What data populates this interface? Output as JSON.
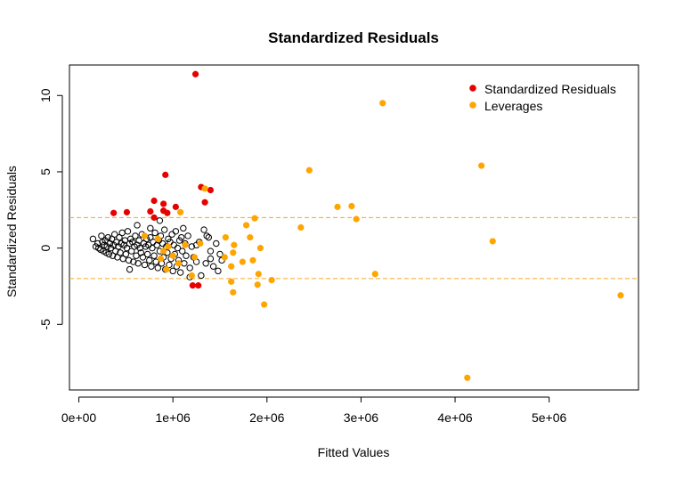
{
  "chart_data": {
    "type": "scatter",
    "title": "Standardized Residuals",
    "xlabel": "Fitted Values",
    "ylabel": "Standardized Residuals",
    "xlim": [
      -100000,
      5950000
    ],
    "ylim": [
      -9.3,
      12.0
    ],
    "x_ticks": [
      {
        "value": 0,
        "label": "0e+00"
      },
      {
        "value": 1000000,
        "label": "1e+06"
      },
      {
        "value": 2000000,
        "label": "2e+06"
      },
      {
        "value": 3000000,
        "label": "3e+06"
      },
      {
        "value": 4000000,
        "label": "4e+06"
      },
      {
        "value": 5000000,
        "label": "5e+06"
      }
    ],
    "y_ticks": [
      {
        "value": -5,
        "label": "-5"
      },
      {
        "value": 0,
        "label": "0"
      },
      {
        "value": 5,
        "label": "5"
      },
      {
        "value": 10,
        "label": "10"
      }
    ],
    "reference_lines": [
      {
        "axis": "y",
        "value": 2,
        "style": "dashed",
        "color": "#f5a623"
      },
      {
        "axis": "y",
        "value": -2,
        "style": "dashed",
        "color": "#f5a623"
      }
    ],
    "legend": {
      "position": "top-right",
      "entries": [
        {
          "label": "Standardized Residuals",
          "color": "#e60000"
        },
        {
          "label": "Leverages",
          "color": "#ffa500"
        }
      ]
    },
    "series": [
      {
        "marker": "open-circle",
        "color": "#000000",
        "points": [
          [
            150000,
            0.6
          ],
          [
            180000,
            0.1
          ],
          [
            200000,
            0.3
          ],
          [
            210000,
            0.0
          ],
          [
            230000,
            -0.1
          ],
          [
            240000,
            0.8
          ],
          [
            250000,
            0.4
          ],
          [
            260000,
            -0.2
          ],
          [
            270000,
            0.2
          ],
          [
            280000,
            0.5
          ],
          [
            290000,
            -0.3
          ],
          [
            300000,
            0.1
          ],
          [
            310000,
            0.7
          ],
          [
            320000,
            -0.4
          ],
          [
            330000,
            0.3
          ],
          [
            340000,
            0.0
          ],
          [
            350000,
            0.6
          ],
          [
            360000,
            -0.5
          ],
          [
            370000,
            0.2
          ],
          [
            380000,
            0.9
          ],
          [
            390000,
            -0.2
          ],
          [
            400000,
            0.4
          ],
          [
            410000,
            -0.6
          ],
          [
            420000,
            0.1
          ],
          [
            430000,
            0.7
          ],
          [
            440000,
            -0.3
          ],
          [
            450000,
            0.3
          ],
          [
            460000,
            1.0
          ],
          [
            470000,
            -0.7
          ],
          [
            480000,
            0.2
          ],
          [
            490000,
            0.5
          ],
          [
            500000,
            -0.4
          ],
          [
            510000,
            0.0
          ],
          [
            520000,
            1.1
          ],
          [
            530000,
            -0.8
          ],
          [
            540000,
            0.3
          ],
          [
            550000,
            0.6
          ],
          [
            560000,
            -0.2
          ],
          [
            570000,
            0.4
          ],
          [
            580000,
            -0.9
          ],
          [
            590000,
            0.1
          ],
          [
            600000,
            0.8
          ],
          [
            610000,
            -0.5
          ],
          [
            620000,
            0.2
          ],
          [
            630000,
            -1.0
          ],
          [
            640000,
            0.5
          ],
          [
            650000,
            0.0
          ],
          [
            660000,
            -0.3
          ],
          [
            670000,
            0.9
          ],
          [
            680000,
            -0.6
          ],
          [
            690000,
            0.3
          ],
          [
            700000,
            -1.1
          ],
          [
            710000,
            0.1
          ],
          [
            720000,
            0.6
          ],
          [
            730000,
            -0.4
          ],
          [
            740000,
            0.2
          ],
          [
            750000,
            -0.8
          ],
          [
            760000,
            0.7
          ],
          [
            770000,
            -1.2
          ],
          [
            780000,
            0.0
          ],
          [
            790000,
            0.4
          ],
          [
            800000,
            -0.5
          ],
          [
            810000,
            1.0
          ],
          [
            820000,
            -0.9
          ],
          [
            830000,
            0.2
          ],
          [
            840000,
            -1.3
          ],
          [
            850000,
            0.5
          ],
          [
            860000,
            -0.2
          ],
          [
            870000,
            0.8
          ],
          [
            880000,
            -1.0
          ],
          [
            890000,
            0.3
          ],
          [
            900000,
            -0.6
          ],
          [
            910000,
            1.2
          ],
          [
            920000,
            -1.4
          ],
          [
            930000,
            0.1
          ],
          [
            940000,
            -0.3
          ],
          [
            950000,
            0.6
          ],
          [
            960000,
            -1.1
          ],
          [
            970000,
            0.4
          ],
          [
            980000,
            -0.7
          ],
          [
            990000,
            0.9
          ],
          [
            1000000,
            -1.5
          ],
          [
            1010000,
            0.2
          ],
          [
            1020000,
            -0.4
          ],
          [
            1030000,
            1.1
          ],
          [
            1040000,
            -1.2
          ],
          [
            1050000,
            0.0
          ],
          [
            1060000,
            -0.8
          ],
          [
            1070000,
            0.5
          ],
          [
            1080000,
            -1.6
          ],
          [
            1090000,
            0.7
          ],
          [
            1100000,
            -0.2
          ],
          [
            1110000,
            1.3
          ],
          [
            1120000,
            -1.0
          ],
          [
            1130000,
            0.3
          ],
          [
            1140000,
            -0.5
          ],
          [
            1160000,
            0.8
          ],
          [
            1180000,
            -1.3
          ],
          [
            1200000,
            0.1
          ],
          [
            1220000,
            -0.6
          ],
          [
            1250000,
            -0.9
          ],
          [
            1280000,
            0.4
          ],
          [
            1300000,
            -1.8
          ],
          [
            1330000,
            1.2
          ],
          [
            1360000,
            0.8
          ],
          [
            1380000,
            0.7
          ],
          [
            1400000,
            -0.7
          ],
          [
            1430000,
            -1.2
          ],
          [
            1460000,
            0.3
          ],
          [
            1480000,
            -1.5
          ],
          [
            1500000,
            -0.4
          ],
          [
            1520000,
            -0.8
          ],
          [
            1400000,
            -0.2
          ],
          [
            1350000,
            -1.0
          ],
          [
            1250000,
            0.2
          ],
          [
            1180000,
            -1.9
          ],
          [
            860000,
            1.8
          ],
          [
            760000,
            1.3
          ],
          [
            620000,
            1.5
          ],
          [
            540000,
            -1.4
          ]
        ]
      },
      {
        "name": "Standardized Residuals",
        "marker": "filled-circle",
        "color": "#e60000",
        "points": [
          [
            1240000,
            11.4
          ],
          [
            920000,
            4.8
          ],
          [
            1300000,
            4.0
          ],
          [
            1400000,
            3.8
          ],
          [
            800000,
            3.1
          ],
          [
            1340000,
            3.0
          ],
          [
            900000,
            2.9
          ],
          [
            1030000,
            2.7
          ],
          [
            760000,
            2.4
          ],
          [
            510000,
            2.35
          ],
          [
            370000,
            2.3
          ],
          [
            900000,
            2.45
          ],
          [
            940000,
            2.3
          ],
          [
            800000,
            2.0
          ],
          [
            1210000,
            -2.45
          ],
          [
            1270000,
            -2.45
          ]
        ]
      },
      {
        "name": "Leverages",
        "marker": "filled-circle",
        "color": "#ffa500",
        "points": [
          [
            3230000,
            9.5
          ],
          [
            4280000,
            5.4
          ],
          [
            2450000,
            5.1
          ],
          [
            1340000,
            3.9
          ],
          [
            2750000,
            2.7
          ],
          [
            2900000,
            2.75
          ],
          [
            2950000,
            1.9
          ],
          [
            1870000,
            1.95
          ],
          [
            1780000,
            1.5
          ],
          [
            2360000,
            1.35
          ],
          [
            1080000,
            2.35
          ],
          [
            4400000,
            0.45
          ],
          [
            1560000,
            0.7
          ],
          [
            1650000,
            0.2
          ],
          [
            1640000,
            -0.3
          ],
          [
            1820000,
            0.7
          ],
          [
            1930000,
            0.0
          ],
          [
            1740000,
            -0.9
          ],
          [
            1850000,
            -0.8
          ],
          [
            1910000,
            -1.7
          ],
          [
            2050000,
            -2.1
          ],
          [
            1900000,
            -2.4
          ],
          [
            1620000,
            -2.2
          ],
          [
            1640000,
            -2.9
          ],
          [
            1970000,
            -3.7
          ],
          [
            3150000,
            -1.7
          ],
          [
            5760000,
            -3.1
          ],
          [
            4130000,
            -8.5
          ],
          [
            1620000,
            -1.2
          ],
          [
            1200000,
            -1.8
          ],
          [
            1000000,
            -0.5
          ],
          [
            950000,
            0.1
          ],
          [
            870000,
            -0.7
          ],
          [
            840000,
            0.6
          ],
          [
            900000,
            -0.2
          ],
          [
            1060000,
            -1.0
          ],
          [
            1230000,
            -0.6
          ],
          [
            1290000,
            0.3
          ],
          [
            1130000,
            0.2
          ],
          [
            930000,
            -1.4
          ],
          [
            700000,
            0.8
          ],
          [
            1550000,
            -0.6
          ]
        ]
      }
    ]
  }
}
